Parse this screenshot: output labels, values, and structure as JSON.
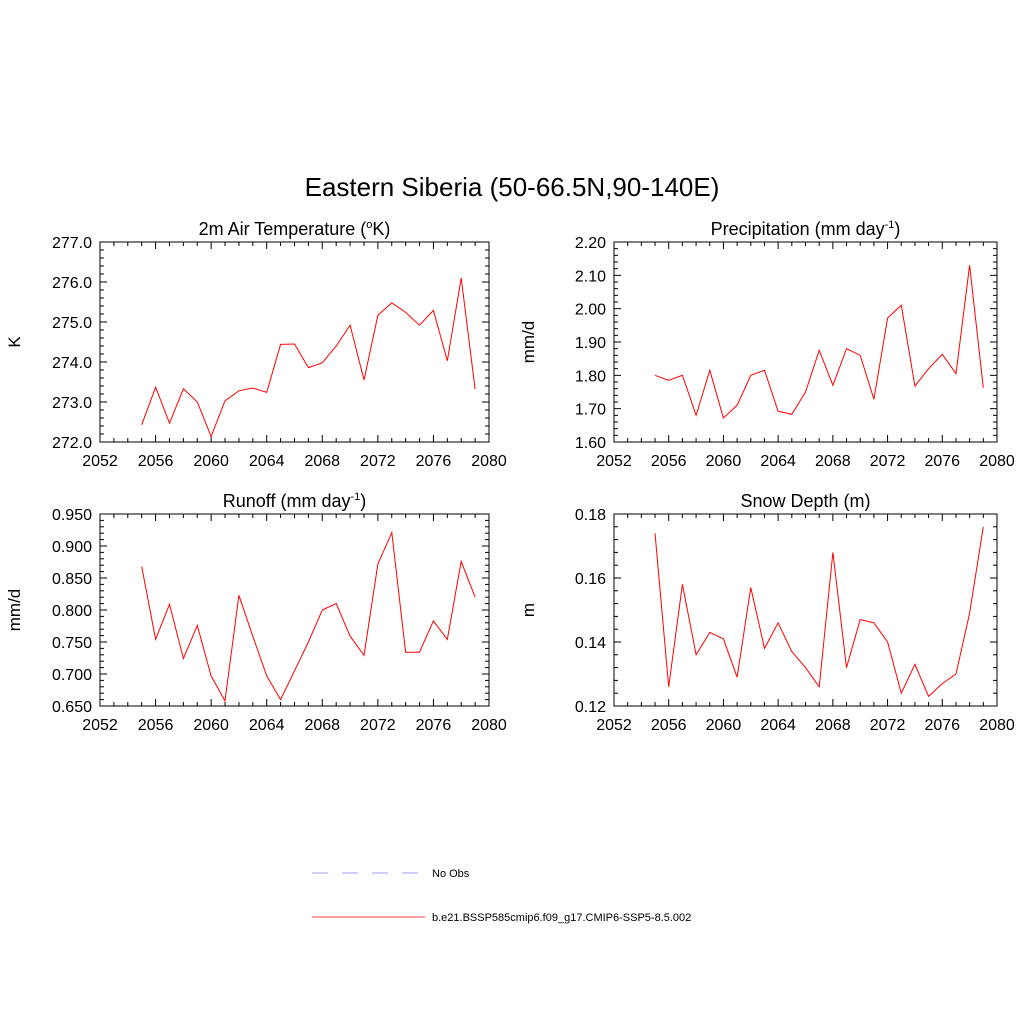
{
  "figure": {
    "title": "Eastern Siberia (50-66.5N,90-140E)"
  },
  "chart_data": [
    {
      "type": "line",
      "title": "2m Air Temperature (",
      "title_sup": "o",
      "title_after": "K)",
      "ylabel": "K",
      "xlim": [
        2052,
        2080
      ],
      "xticks": [
        "2052",
        "2056",
        "2060",
        "2064",
        "2068",
        "2072",
        "2076",
        "2080"
      ],
      "ylim": [
        272.0,
        277.0
      ],
      "yticks": [
        "272.0",
        "273.0",
        "274.0",
        "275.0",
        "276.0",
        "277.0"
      ],
      "x": [
        2055,
        2056,
        2057,
        2058,
        2059,
        2060,
        2061,
        2062,
        2063,
        2064,
        2065,
        2066,
        2067,
        2068,
        2069,
        2070,
        2071,
        2072,
        2073,
        2074,
        2075,
        2076,
        2077,
        2078,
        2079
      ],
      "series": [
        {
          "name": "b.e21.BSSP585cmip6.f09_g17.CMIP6-SSP5-8.5.002",
          "color": "#ff0000",
          "values": [
            272.43,
            273.37,
            272.47,
            273.33,
            273.0,
            272.14,
            273.03,
            273.28,
            273.35,
            273.24,
            274.44,
            274.45,
            273.86,
            273.98,
            274.4,
            274.92,
            273.55,
            275.17,
            275.48,
            275.24,
            274.92,
            275.29,
            274.03,
            276.1,
            273.32
          ]
        }
      ]
    },
    {
      "type": "line",
      "title": "Precipitation (mm day",
      "title_sup": "-1",
      "title_after": ")",
      "ylabel": "mm/d",
      "xlim": [
        2052,
        2080
      ],
      "xticks": [
        "2052",
        "2056",
        "2060",
        "2064",
        "2068",
        "2072",
        "2076",
        "2080"
      ],
      "ylim": [
        1.6,
        2.2
      ],
      "yticks": [
        "1.60",
        "1.70",
        "1.80",
        "1.90",
        "2.00",
        "2.10",
        "2.20"
      ],
      "x": [
        2055,
        2056,
        2057,
        2058,
        2059,
        2060,
        2061,
        2062,
        2063,
        2064,
        2065,
        2066,
        2067,
        2068,
        2069,
        2070,
        2071,
        2072,
        2073,
        2074,
        2075,
        2076,
        2077,
        2078,
        2079
      ],
      "series": [
        {
          "name": "b.e21.BSSP585cmip6.f09_g17.CMIP6-SSP5-8.5.002",
          "color": "#ff0000",
          "values": [
            1.8,
            1.785,
            1.8,
            1.68,
            1.815,
            1.672,
            1.71,
            1.8,
            1.815,
            1.692,
            1.683,
            1.75,
            1.875,
            1.77,
            1.88,
            1.86,
            1.728,
            1.972,
            2.01,
            1.768,
            1.82,
            1.863,
            1.805,
            2.13,
            1.763
          ]
        }
      ]
    },
    {
      "type": "line",
      "title": "Runoff (mm day",
      "title_sup": "-1",
      "title_after": ")",
      "ylabel": "mm/d",
      "xlim": [
        2052,
        2080
      ],
      "xticks": [
        "2052",
        "2056",
        "2060",
        "2064",
        "2068",
        "2072",
        "2076",
        "2080"
      ],
      "ylim": [
        0.65,
        0.95
      ],
      "yticks": [
        "0.650",
        "0.700",
        "0.750",
        "0.800",
        "0.850",
        "0.900",
        "0.950"
      ],
      "x": [
        2055,
        2056,
        2057,
        2058,
        2059,
        2060,
        2061,
        2062,
        2063,
        2064,
        2065,
        2066,
        2067,
        2068,
        2069,
        2070,
        2071,
        2072,
        2073,
        2074,
        2075,
        2076,
        2077,
        2078,
        2079
      ],
      "series": [
        {
          "name": "b.e21.BSSP585cmip6.f09_g17.CMIP6-SSP5-8.5.002",
          "color": "#ff0000",
          "values": [
            0.868,
            0.754,
            0.809,
            0.724,
            0.776,
            0.697,
            0.658,
            0.823,
            0.759,
            0.697,
            0.66,
            0.705,
            0.75,
            0.8,
            0.81,
            0.759,
            0.729,
            0.872,
            0.921,
            0.734,
            0.734,
            0.783,
            0.754,
            0.876,
            0.82
          ]
        }
      ]
    },
    {
      "type": "line",
      "title": "Snow Depth (m)",
      "title_sup": "",
      "title_after": "",
      "ylabel": "m",
      "xlim": [
        2052,
        2080
      ],
      "xticks": [
        "2052",
        "2056",
        "2060",
        "2064",
        "2068",
        "2072",
        "2076",
        "2080"
      ],
      "ylim": [
        0.12,
        0.18
      ],
      "yticks": [
        "0.12",
        "0.14",
        "0.16",
        "0.18"
      ],
      "x": [
        2055,
        2056,
        2057,
        2058,
        2059,
        2060,
        2061,
        2062,
        2063,
        2064,
        2065,
        2066,
        2067,
        2068,
        2069,
        2070,
        2071,
        2072,
        2073,
        2074,
        2075,
        2076,
        2077,
        2078,
        2079
      ],
      "series": [
        {
          "name": "b.e21.BSSP585cmip6.f09_g17.CMIP6-SSP5-8.5.002",
          "color": "#ff0000",
          "values": [
            0.174,
            0.126,
            0.158,
            0.136,
            0.143,
            0.141,
            0.129,
            0.157,
            0.138,
            0.146,
            0.137,
            0.132,
            0.126,
            0.168,
            0.132,
            0.147,
            0.146,
            0.14,
            0.124,
            0.133,
            0.123,
            0.127,
            0.13,
            0.149,
            0.176
          ]
        }
      ]
    }
  ],
  "legend": {
    "entries": [
      {
        "label": "No Obs",
        "color": "#a0a0ff",
        "style": "dashed"
      },
      {
        "label": "b.e21.BSSP585cmip6.f09_g17.CMIP6-SSP5-8.5.002",
        "color": "#ff4040",
        "style": "solid"
      }
    ]
  }
}
